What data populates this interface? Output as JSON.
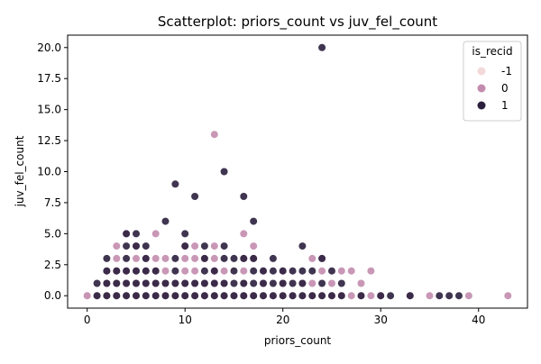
{
  "chart_data": {
    "type": "scatter",
    "title": "Scatterplot: priors_count vs juv_fel_count",
    "xlabel": "priors_count",
    "ylabel": "juv_fel_count",
    "xlim": [
      -2,
      45
    ],
    "ylim": [
      -1,
      21
    ],
    "xticks": [
      0,
      10,
      20,
      30,
      40
    ],
    "yticks": [
      0.0,
      2.5,
      5.0,
      7.5,
      10.0,
      12.5,
      15.0,
      17.5,
      20.0
    ],
    "ytick_labels": [
      "0.0",
      "2.5",
      "5.0",
      "7.5",
      "10.0",
      "12.5",
      "15.0",
      "17.5",
      "20.0"
    ],
    "grid": false,
    "legend": {
      "title": "is_recid",
      "placement": "top-right",
      "entries": [
        "-1",
        "0",
        "1"
      ]
    },
    "series": [
      {
        "name": "-1",
        "color": "#f3d9d9",
        "points": [
          [
            0,
            0
          ],
          [
            5,
            0
          ],
          [
            8,
            0
          ],
          [
            10,
            0
          ],
          [
            12,
            0
          ],
          [
            15,
            0
          ],
          [
            18,
            0
          ]
        ]
      },
      {
        "name": "0",
        "color": "#c38cae",
        "points": [
          [
            0,
            0
          ],
          [
            1,
            0
          ],
          [
            2,
            0
          ],
          [
            3,
            0
          ],
          [
            4,
            0
          ],
          [
            5,
            0
          ],
          [
            6,
            0
          ],
          [
            7,
            0
          ],
          [
            8,
            0
          ],
          [
            9,
            0
          ],
          [
            10,
            0
          ],
          [
            11,
            0
          ],
          [
            12,
            0
          ],
          [
            13,
            0
          ],
          [
            14,
            0
          ],
          [
            15,
            0
          ],
          [
            16,
            0
          ],
          [
            17,
            0
          ],
          [
            18,
            0
          ],
          [
            19,
            0
          ],
          [
            20,
            0
          ],
          [
            21,
            0
          ],
          [
            22,
            0
          ],
          [
            23,
            0
          ],
          [
            24,
            0
          ],
          [
            25,
            0
          ],
          [
            26,
            0
          ],
          [
            27,
            0
          ],
          [
            28,
            0
          ],
          [
            29,
            0
          ],
          [
            30,
            0
          ],
          [
            33,
            0
          ],
          [
            35,
            0
          ],
          [
            39,
            0
          ],
          [
            43,
            0
          ],
          [
            2,
            1
          ],
          [
            3,
            1
          ],
          [
            4,
            1
          ],
          [
            5,
            1
          ],
          [
            6,
            1
          ],
          [
            7,
            1
          ],
          [
            8,
            1
          ],
          [
            9,
            1
          ],
          [
            10,
            1
          ],
          [
            11,
            1
          ],
          [
            12,
            1
          ],
          [
            13,
            1
          ],
          [
            14,
            1
          ],
          [
            16,
            1
          ],
          [
            18,
            1
          ],
          [
            20,
            1
          ],
          [
            22,
            1
          ],
          [
            23,
            1
          ],
          [
            25,
            1
          ],
          [
            28,
            1
          ],
          [
            2,
            2
          ],
          [
            3,
            2
          ],
          [
            4,
            2
          ],
          [
            5,
            2
          ],
          [
            6,
            2
          ],
          [
            7,
            2
          ],
          [
            8,
            2
          ],
          [
            10,
            2
          ],
          [
            11,
            2
          ],
          [
            13,
            2
          ],
          [
            14,
            2
          ],
          [
            16,
            2
          ],
          [
            18,
            2
          ],
          [
            20,
            2
          ],
          [
            24,
            2
          ],
          [
            26,
            2
          ],
          [
            27,
            2
          ],
          [
            29,
            2
          ],
          [
            3,
            3
          ],
          [
            5,
            3
          ],
          [
            6,
            3
          ],
          [
            7,
            3
          ],
          [
            8,
            3
          ],
          [
            10,
            3
          ],
          [
            11,
            3
          ],
          [
            12,
            3
          ],
          [
            13,
            3
          ],
          [
            16,
            3
          ],
          [
            17,
            3
          ],
          [
            23,
            3
          ],
          [
            24,
            3
          ],
          [
            3,
            4
          ],
          [
            5,
            4
          ],
          [
            10,
            4
          ],
          [
            11,
            4
          ],
          [
            13,
            4
          ],
          [
            17,
            4
          ],
          [
            4,
            5
          ],
          [
            7,
            5
          ],
          [
            16,
            5
          ],
          [
            13,
            13
          ]
        ]
      },
      {
        "name": "1",
        "color": "#2b1f3d",
        "points": [
          [
            1,
            0
          ],
          [
            2,
            0
          ],
          [
            3,
            0
          ],
          [
            4,
            0
          ],
          [
            5,
            0
          ],
          [
            6,
            0
          ],
          [
            7,
            0
          ],
          [
            8,
            0
          ],
          [
            9,
            0
          ],
          [
            10,
            0
          ],
          [
            11,
            0
          ],
          [
            12,
            0
          ],
          [
            13,
            0
          ],
          [
            14,
            0
          ],
          [
            15,
            0
          ],
          [
            16,
            0
          ],
          [
            17,
            0
          ],
          [
            18,
            0
          ],
          [
            19,
            0
          ],
          [
            20,
            0
          ],
          [
            21,
            0
          ],
          [
            22,
            0
          ],
          [
            23,
            0
          ],
          [
            24,
            0
          ],
          [
            25,
            0
          ],
          [
            26,
            0
          ],
          [
            28,
            0
          ],
          [
            30,
            0
          ],
          [
            31,
            0
          ],
          [
            33,
            0
          ],
          [
            36,
            0
          ],
          [
            37,
            0
          ],
          [
            38,
            0
          ],
          [
            1,
            1
          ],
          [
            2,
            1
          ],
          [
            3,
            1
          ],
          [
            4,
            1
          ],
          [
            5,
            1
          ],
          [
            6,
            1
          ],
          [
            7,
            1
          ],
          [
            8,
            1
          ],
          [
            9,
            1
          ],
          [
            10,
            1
          ],
          [
            11,
            1
          ],
          [
            12,
            1
          ],
          [
            13,
            1
          ],
          [
            14,
            1
          ],
          [
            15,
            1
          ],
          [
            16,
            1
          ],
          [
            17,
            1
          ],
          [
            18,
            1
          ],
          [
            19,
            1
          ],
          [
            20,
            1
          ],
          [
            21,
            1
          ],
          [
            22,
            1
          ],
          [
            24,
            1
          ],
          [
            26,
            1
          ],
          [
            2,
            2
          ],
          [
            3,
            2
          ],
          [
            4,
            2
          ],
          [
            5,
            2
          ],
          [
            6,
            2
          ],
          [
            7,
            2
          ],
          [
            9,
            2
          ],
          [
            12,
            2
          ],
          [
            13,
            2
          ],
          [
            15,
            2
          ],
          [
            17,
            2
          ],
          [
            18,
            2
          ],
          [
            19,
            2
          ],
          [
            20,
            2
          ],
          [
            21,
            2
          ],
          [
            22,
            2
          ],
          [
            23,
            2
          ],
          [
            25,
            2
          ],
          [
            2,
            3
          ],
          [
            4,
            3
          ],
          [
            6,
            3
          ],
          [
            9,
            3
          ],
          [
            12,
            3
          ],
          [
            14,
            3
          ],
          [
            15,
            3
          ],
          [
            16,
            3
          ],
          [
            17,
            3
          ],
          [
            19,
            3
          ],
          [
            24,
            3
          ],
          [
            4,
            4
          ],
          [
            5,
            4
          ],
          [
            6,
            4
          ],
          [
            10,
            4
          ],
          [
            12,
            4
          ],
          [
            14,
            4
          ],
          [
            22,
            4
          ],
          [
            4,
            5
          ],
          [
            5,
            5
          ],
          [
            10,
            5
          ],
          [
            8,
            6
          ],
          [
            17,
            6
          ],
          [
            11,
            8
          ],
          [
            16,
            8
          ],
          [
            9,
            9
          ],
          [
            14,
            10
          ],
          [
            24,
            20
          ]
        ]
      }
    ]
  }
}
